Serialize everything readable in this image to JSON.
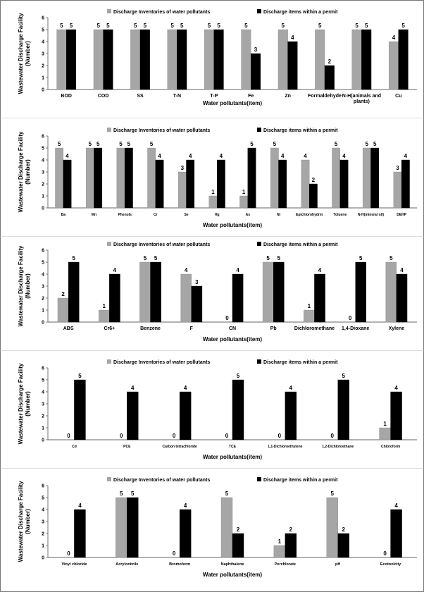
{
  "colors": {
    "inventory": "#a6a6a6",
    "permit": "#000000",
    "axis": "#666666",
    "grid": "#d9d9d9"
  },
  "chart_data": [
    {
      "type": "bar",
      "ylabel": "Wastewater Discharge Facility (Number)",
      "xlabel": "Water pollutants(item)",
      "ylim": [
        0,
        6
      ],
      "yticks": [
        "0",
        "1",
        "2",
        "3",
        "4",
        "5",
        "6"
      ],
      "legend_position": "top",
      "categories": [
        "BOD",
        "COD",
        "SS",
        "T-N",
        "T-P",
        "Fe",
        "Zn",
        "Formaldehyde",
        "N-H(animals and plants)",
        "Cu"
      ],
      "series": [
        {
          "name": "Discharge Inventories of water pollutants",
          "values": [
            5,
            5,
            5,
            5,
            5,
            5,
            5,
            5,
            5,
            4
          ]
        },
        {
          "name": "Discharge items within a permit",
          "values": [
            5,
            5,
            5,
            5,
            5,
            3,
            4,
            2,
            5,
            5
          ]
        }
      ]
    },
    {
      "type": "bar",
      "ylabel": "Wastewater Discharge Facility (Number)",
      "xlabel": "Water pollutants(item)",
      "ylim": [
        0,
        6
      ],
      "yticks": [
        "0",
        "1",
        "2",
        "3",
        "4",
        "5",
        "6"
      ],
      "legend_position": "top",
      "categories": [
        "Ba",
        "Mn",
        "Phenols",
        "Cr",
        "Se",
        "Hg",
        "As",
        "Ni",
        "Epichlorohydrin",
        "Toluene",
        "N-H(mineral oil)",
        "DEHP"
      ],
      "series": [
        {
          "name": "Discharge Inventories of water pollutants",
          "values": [
            5,
            5,
            5,
            5,
            3,
            1,
            1,
            5,
            4,
            5,
            5,
            3
          ]
        },
        {
          "name": "Discharge items within a permit",
          "values": [
            4,
            5,
            5,
            4,
            4,
            4,
            5,
            4,
            2,
            4,
            5,
            4
          ]
        }
      ]
    },
    {
      "type": "bar",
      "ylabel": "Wastewater Discharge Facility (Number)",
      "xlabel": "Water pollutants(item)",
      "ylim": [
        0,
        6
      ],
      "yticks": [
        "0",
        "1",
        "2",
        "3",
        "4",
        "5",
        "6"
      ],
      "legend_position": "top",
      "categories": [
        "ABS",
        "Cr6+",
        "Benzene",
        "F",
        "CN",
        "Pb",
        "Dichloromethane",
        "1,4-Dioxane",
        "Xylene"
      ],
      "series": [
        {
          "name": "Discharge Inventories of water pollutants",
          "values": [
            2,
            1,
            5,
            4,
            0,
            5,
            1,
            0,
            5
          ]
        },
        {
          "name": "Discharge items within a permit",
          "values": [
            5,
            4,
            5,
            3,
            4,
            5,
            4,
            5,
            4
          ]
        }
      ]
    },
    {
      "type": "bar",
      "ylabel": "Wastewater Discharge Facility (Number)",
      "xlabel": "Water pollutants(item)",
      "ylim": [
        0,
        6
      ],
      "yticks": [
        "0",
        "1",
        "2",
        "3",
        "4",
        "5",
        "6"
      ],
      "legend_position": "top",
      "categories": [
        "Cd",
        "PCE",
        "Carbon tetrachloride",
        "TCE",
        "1,1-Dichloroethylene",
        "1,2-Dichloroethane",
        "Chloroform"
      ],
      "series": [
        {
          "name": "Discharge Inventories of water pollutants",
          "values": [
            0,
            0,
            0,
            0,
            0,
            0,
            1
          ]
        },
        {
          "name": "Discharge items within a permit",
          "values": [
            5,
            4,
            4,
            5,
            4,
            5,
            4
          ]
        }
      ]
    },
    {
      "type": "bar",
      "ylabel": "Wastewater Discharge Facility (Number)",
      "xlabel": "Water pollutants(item)",
      "ylim": [
        0,
        6
      ],
      "yticks": [
        "0",
        "1",
        "2",
        "3",
        "4",
        "5",
        "6"
      ],
      "legend_position": "top",
      "categories": [
        "Vinyl chloride",
        "Acrylonitrile",
        "Bromoform",
        "Naphthalene",
        "Perchlorate",
        "pH",
        "Ecotoxicity"
      ],
      "series": [
        {
          "name": "Discharge Inventories of water pollutants",
          "values": [
            0,
            5,
            0,
            5,
            1,
            5,
            0
          ]
        },
        {
          "name": "Discharge items within a permit",
          "values": [
            4,
            5,
            4,
            2,
            2,
            2,
            4
          ]
        }
      ]
    }
  ]
}
